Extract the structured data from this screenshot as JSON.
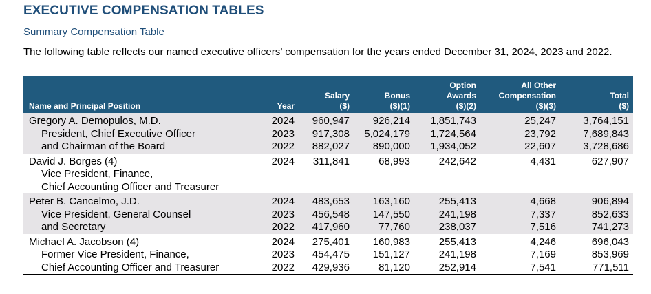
{
  "heading": "EXECUTIVE COMPENSATION TABLES",
  "subheading": "Summary Compensation Table",
  "intro": "The following table reflects our named executive officers’ compensation for the years ended December 31, 2024, 2023 and 2022.",
  "columns": {
    "name": "Name and Principal Position",
    "year": "Year",
    "salary": [
      "Salary",
      "($)"
    ],
    "bonus": [
      "Bonus",
      "($)(1)"
    ],
    "option": [
      "Option",
      "Awards",
      "($)(2)"
    ],
    "other": [
      "All Other",
      "Compensation",
      "($)(3)"
    ],
    "total": [
      "Total",
      "($)"
    ]
  },
  "officers": [
    {
      "name": "Gregory A. Demopulos, M.D.",
      "titles": [
        "President, Chief Executive Officer",
        "and Chairman of the Board"
      ],
      "rows": [
        {
          "year": "2024",
          "salary": "960,947",
          "bonus": "926,214",
          "option": "1,851,743",
          "other": "25,247",
          "total": "3,764,151"
        },
        {
          "year": "2023",
          "salary": "917,308",
          "bonus": "5,024,179",
          "option": "1,724,564",
          "other": "23,792",
          "total": "7,689,843"
        },
        {
          "year": "2022",
          "salary": "882,027",
          "bonus": "890,000",
          "option": "1,934,052",
          "other": "22,607",
          "total": "3,728,686"
        }
      ]
    },
    {
      "name": "David J. Borges (4)",
      "titles": [
        "Vice President, Finance,",
        "Chief Accounting Officer and Treasurer"
      ],
      "rows": [
        {
          "year": "2024",
          "salary": "311,841",
          "bonus": "68,993",
          "option": "242,642",
          "other": "4,431",
          "total": "627,907"
        }
      ]
    },
    {
      "name": "Peter B. Cancelmo, J.D.",
      "titles": [
        "Vice President, General Counsel",
        "and Secretary"
      ],
      "rows": [
        {
          "year": "2024",
          "salary": "483,653",
          "bonus": "163,160",
          "option": "255,413",
          "other": "4,668",
          "total": "906,894"
        },
        {
          "year": "2023",
          "salary": "456,548",
          "bonus": "147,550",
          "option": "241,198",
          "other": "7,337",
          "total": "852,633"
        },
        {
          "year": "2022",
          "salary": "417,960",
          "bonus": "77,760",
          "option": "238,037",
          "other": "7,516",
          "total": "741,273"
        }
      ]
    },
    {
      "name": "Michael A. Jacobson (4)",
      "titles": [
        "Former Vice President, Finance,",
        "Chief Accounting Officer and Treasurer"
      ],
      "rows": [
        {
          "year": "2024",
          "salary": "275,401",
          "bonus": "160,983",
          "option": "255,413",
          "other": "4,246",
          "total": "696,043"
        },
        {
          "year": "2023",
          "salary": "454,475",
          "bonus": "151,127",
          "option": "241,198",
          "other": "7,169",
          "total": "853,969"
        },
        {
          "year": "2022",
          "salary": "429,936",
          "bonus": "81,120",
          "option": "252,914",
          "other": "7,541",
          "total": "771,511"
        }
      ]
    }
  ]
}
